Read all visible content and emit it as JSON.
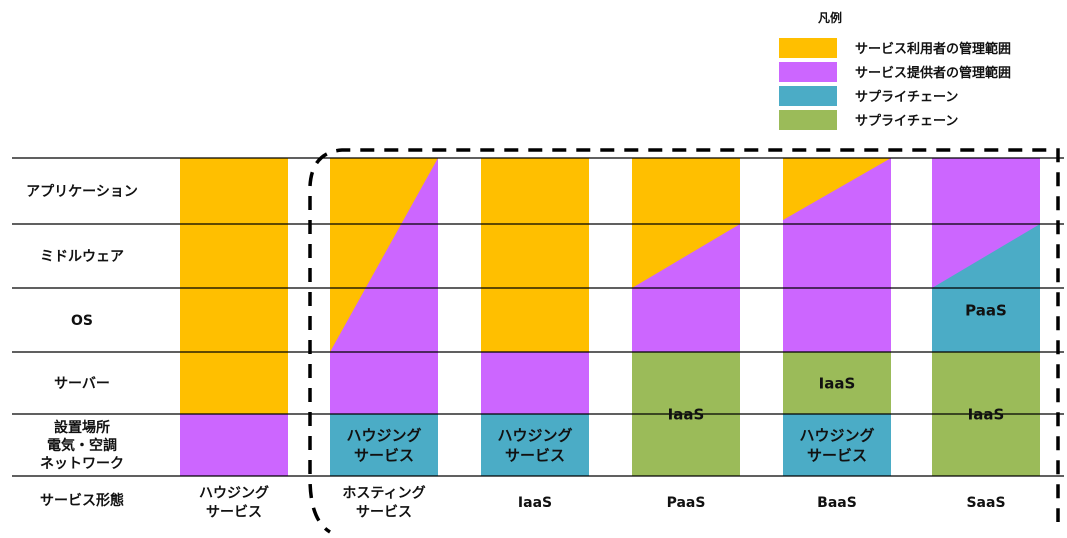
{
  "colors": {
    "user_managed": "#FFBF00",
    "provider_managed": "#CC66FF",
    "supply_chain_blue": "#4BACC6",
    "supply_chain_green": "#9BBB59",
    "grid_line": "#000000",
    "border_dash": "#000000"
  },
  "legend": {
    "title": "凡例",
    "items": [
      {
        "label": "サービス利用者の管理範囲",
        "color": "#FFBF00"
      },
      {
        "label": "サービス提供者の管理範囲",
        "color": "#CC66FF"
      },
      {
        "label": "サプライチェーン",
        "color": "#4BACC6"
      },
      {
        "label": "サプライチェーン",
        "color": "#9BBB59"
      }
    ]
  },
  "layers": [
    {
      "lines": [
        "アプリケーション"
      ]
    },
    {
      "lines": [
        "ミドルウェア"
      ]
    },
    {
      "lines": [
        "OS"
      ]
    },
    {
      "lines": [
        "サーバー"
      ]
    },
    {
      "lines": [
        "設置場所",
        "電気・空調",
        "ネットワーク"
      ]
    }
  ],
  "row_header": {
    "lines": [
      "サービス形態"
    ]
  },
  "columns": [
    {
      "lines": [
        "ハウジング",
        "サービス"
      ]
    },
    {
      "lines": [
        "ホスティング",
        "サービス"
      ]
    },
    {
      "lines": [
        "IaaS"
      ]
    },
    {
      "lines": [
        "PaaS"
      ]
    },
    {
      "lines": [
        "BaaS"
      ]
    },
    {
      "lines": [
        "SaaS"
      ]
    }
  ],
  "cell_labels": {
    "housing_service": [
      "ハウジング",
      "サービス"
    ],
    "iaas": [
      "IaaS"
    ],
    "paas": [
      "PaaS"
    ]
  }
}
